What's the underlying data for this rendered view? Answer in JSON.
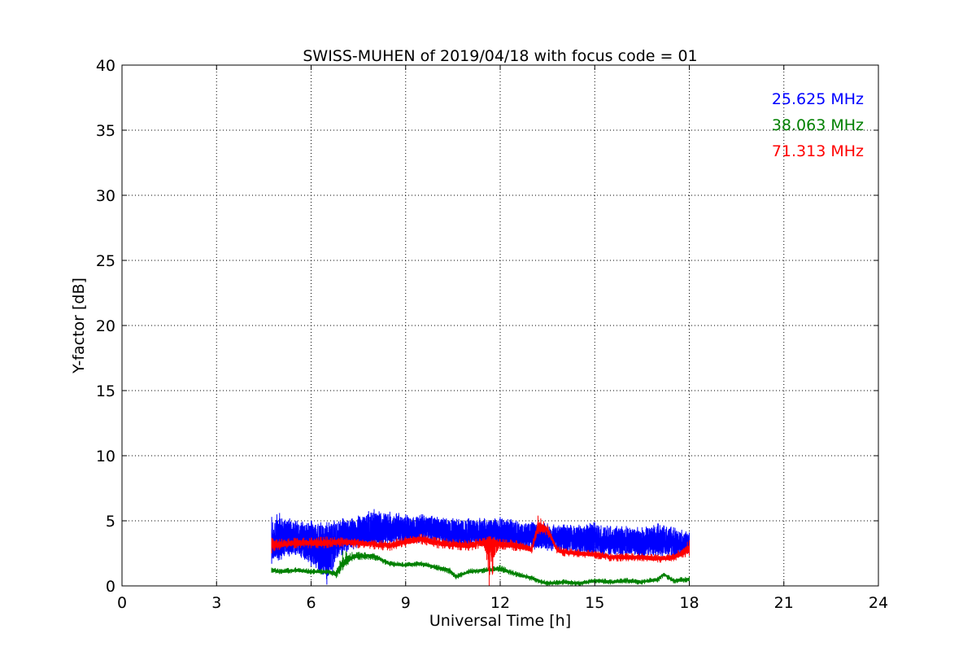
{
  "chart_data": {
    "type": "line",
    "title": "SWISS-MUHEN of 2019/04/18 with focus code = 01",
    "xlabel": "Universal Time [h]",
    "ylabel": "Y-factor [dB]",
    "xlim": [
      0,
      24
    ],
    "ylim": [
      0,
      40
    ],
    "xticks": [
      "0",
      "3",
      "6",
      "9",
      "12",
      "15",
      "18",
      "21",
      "24"
    ],
    "yticks": [
      "0",
      "5",
      "10",
      "15",
      "20",
      "25",
      "30",
      "35",
      "40"
    ],
    "grid": true,
    "legend_position": "top-right",
    "series": [
      {
        "name": "25.625 MHz",
        "color": "#0000ff",
        "x": [
          4.75,
          5.0,
          5.5,
          6.0,
          6.5,
          7.0,
          7.5,
          8.0,
          8.5,
          9.0,
          9.5,
          10.0,
          10.5,
          11.0,
          11.5,
          12.0,
          12.5,
          13.0,
          13.5,
          14.0,
          14.5,
          15.0,
          15.5,
          16.0,
          16.5,
          17.0,
          17.5,
          18.0
        ],
        "mean": [
          3.3,
          3.4,
          3.5,
          3.3,
          3.2,
          3.6,
          3.9,
          4.2,
          4.3,
          4.2,
          4.3,
          4.2,
          4.1,
          4.0,
          4.0,
          4.0,
          3.9,
          3.8,
          3.7,
          3.5,
          3.4,
          3.4,
          3.3,
          3.3,
          3.2,
          3.3,
          3.2,
          3.2
        ],
        "low": [
          1.7,
          2.0,
          2.4,
          1.5,
          0.1,
          2.4,
          3.0,
          3.1,
          3.2,
          3.3,
          3.3,
          3.2,
          3.1,
          3.0,
          3.0,
          3.0,
          2.9,
          2.8,
          2.7,
          2.5,
          2.4,
          2.4,
          2.3,
          2.3,
          2.2,
          2.3,
          2.2,
          2.4
        ],
        "high": [
          5.3,
          5.6,
          5.0,
          5.0,
          4.9,
          5.2,
          5.4,
          5.9,
          5.7,
          5.5,
          5.5,
          5.3,
          5.2,
          5.2,
          5.2,
          5.3,
          5.0,
          4.9,
          4.8,
          4.7,
          4.7,
          4.9,
          4.6,
          4.6,
          4.5,
          4.8,
          4.5,
          4.1
        ]
      },
      {
        "name": "38.063 MHz",
        "color": "#008000",
        "x": [
          4.75,
          5.0,
          5.5,
          6.0,
          6.5,
          6.8,
          7.0,
          7.3,
          7.5,
          8.0,
          8.5,
          9.0,
          9.5,
          10.0,
          10.4,
          10.6,
          11.0,
          11.5,
          12.0,
          12.5,
          13.0,
          13.3,
          13.5,
          14.0,
          14.5,
          15.0,
          15.5,
          16.0,
          16.5,
          17.0,
          17.2,
          17.5,
          18.0
        ],
        "mean": [
          1.2,
          1.1,
          1.2,
          1.1,
          1.1,
          0.9,
          1.6,
          2.2,
          2.3,
          2.3,
          1.7,
          1.6,
          1.7,
          1.4,
          1.2,
          0.7,
          1.1,
          1.2,
          1.3,
          0.9,
          0.6,
          0.3,
          0.2,
          0.3,
          0.2,
          0.4,
          0.3,
          0.4,
          0.3,
          0.5,
          0.9,
          0.4,
          0.5
        ],
        "low": [
          1.0,
          0.9,
          1.0,
          0.9,
          0.9,
          0.6,
          1.2,
          1.9,
          2.0,
          2.0,
          1.5,
          1.4,
          1.5,
          1.2,
          0.9,
          0.5,
          0.9,
          1.0,
          1.1,
          0.7,
          0.4,
          0.1,
          0.0,
          0.1,
          0.0,
          0.2,
          0.1,
          0.2,
          0.1,
          0.3,
          0.7,
          0.2,
          0.3
        ],
        "high": [
          1.4,
          1.3,
          1.4,
          1.3,
          1.3,
          1.2,
          2.7,
          2.6,
          2.6,
          2.5,
          1.9,
          1.8,
          1.9,
          1.6,
          1.4,
          0.9,
          1.3,
          1.4,
          1.6,
          1.1,
          0.8,
          0.5,
          0.4,
          0.5,
          0.4,
          0.6,
          0.5,
          0.6,
          0.5,
          0.7,
          1.0,
          0.6,
          0.7
        ]
      },
      {
        "name": "71.313 MHz",
        "color": "#ff0000",
        "x": [
          4.75,
          5.0,
          5.5,
          6.0,
          6.5,
          7.0,
          7.5,
          8.0,
          8.5,
          9.0,
          9.5,
          10.0,
          10.5,
          11.0,
          11.5,
          11.65,
          12.0,
          12.5,
          13.0,
          13.2,
          13.5,
          13.8,
          14.0,
          14.5,
          15.0,
          15.5,
          16.0,
          16.5,
          17.0,
          17.5,
          18.0
        ],
        "mean": [
          3.3,
          3.2,
          3.3,
          3.3,
          3.3,
          3.4,
          3.3,
          3.2,
          3.1,
          3.4,
          3.6,
          3.3,
          3.2,
          3.1,
          3.3,
          3.5,
          3.2,
          3.1,
          2.8,
          4.4,
          4.3,
          2.8,
          2.6,
          2.5,
          2.4,
          2.2,
          2.2,
          2.2,
          2.1,
          2.2,
          2.8
        ],
        "low": [
          2.5,
          2.8,
          2.9,
          2.9,
          2.9,
          3.0,
          2.9,
          2.8,
          2.7,
          3.0,
          3.2,
          2.9,
          2.8,
          2.7,
          2.9,
          0.0,
          2.8,
          2.7,
          2.5,
          4.0,
          3.9,
          2.5,
          2.3,
          2.2,
          2.1,
          1.9,
          1.9,
          1.9,
          1.8,
          1.9,
          2.3
        ],
        "high": [
          3.7,
          3.6,
          3.7,
          3.7,
          3.8,
          3.7,
          3.6,
          3.5,
          3.5,
          3.8,
          4.0,
          3.7,
          3.6,
          3.5,
          3.7,
          3.8,
          3.6,
          3.5,
          3.2,
          5.4,
          4.7,
          3.1,
          2.9,
          2.8,
          2.7,
          2.5,
          2.5,
          2.5,
          2.4,
          2.5,
          3.5
        ]
      }
    ]
  }
}
